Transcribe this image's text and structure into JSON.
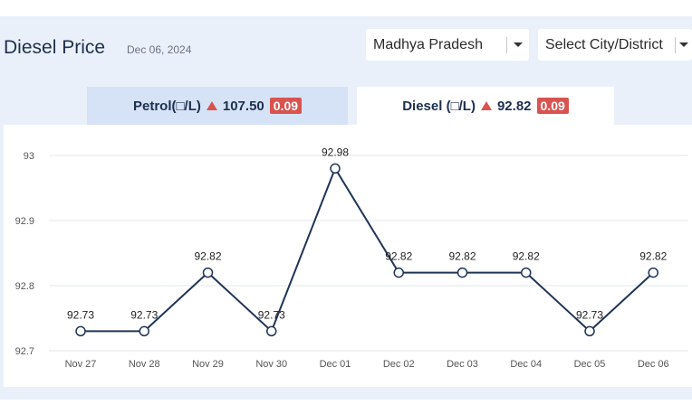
{
  "header": {
    "title": "Diesel Price",
    "date": "Dec 06, 2024"
  },
  "filters": {
    "state": "Madhya Pradesh",
    "city": "Select City/District"
  },
  "tabs": {
    "petrol": {
      "label": "Petrol(□/L)",
      "price": "107.50",
      "change": "0.09"
    },
    "diesel": {
      "label": "Diesel (□/L)",
      "price": "92.82",
      "change": "0.09"
    }
  },
  "colors": {
    "line": "#1f3556",
    "up": "#d9534f"
  },
  "chart_data": {
    "type": "line",
    "categories": [
      "Nov 27",
      "Nov 28",
      "Nov 29",
      "Nov 30",
      "Dec 01",
      "Dec 02",
      "Dec 03",
      "Dec 04",
      "Dec 05",
      "Dec 06"
    ],
    "values": [
      92.73,
      92.73,
      92.82,
      92.73,
      92.98,
      92.82,
      92.82,
      92.82,
      92.73,
      92.82
    ],
    "value_labels": [
      "92.73",
      "92.73",
      "92.82",
      "92.73",
      "92.98",
      "92.82",
      "92.82",
      "92.82",
      "92.73",
      "92.82"
    ],
    "y_ticks": [
      "93",
      "92.9",
      "92.8",
      "92.7"
    ],
    "ylim": [
      92.7,
      93
    ],
    "grid": true,
    "legend": "none"
  }
}
